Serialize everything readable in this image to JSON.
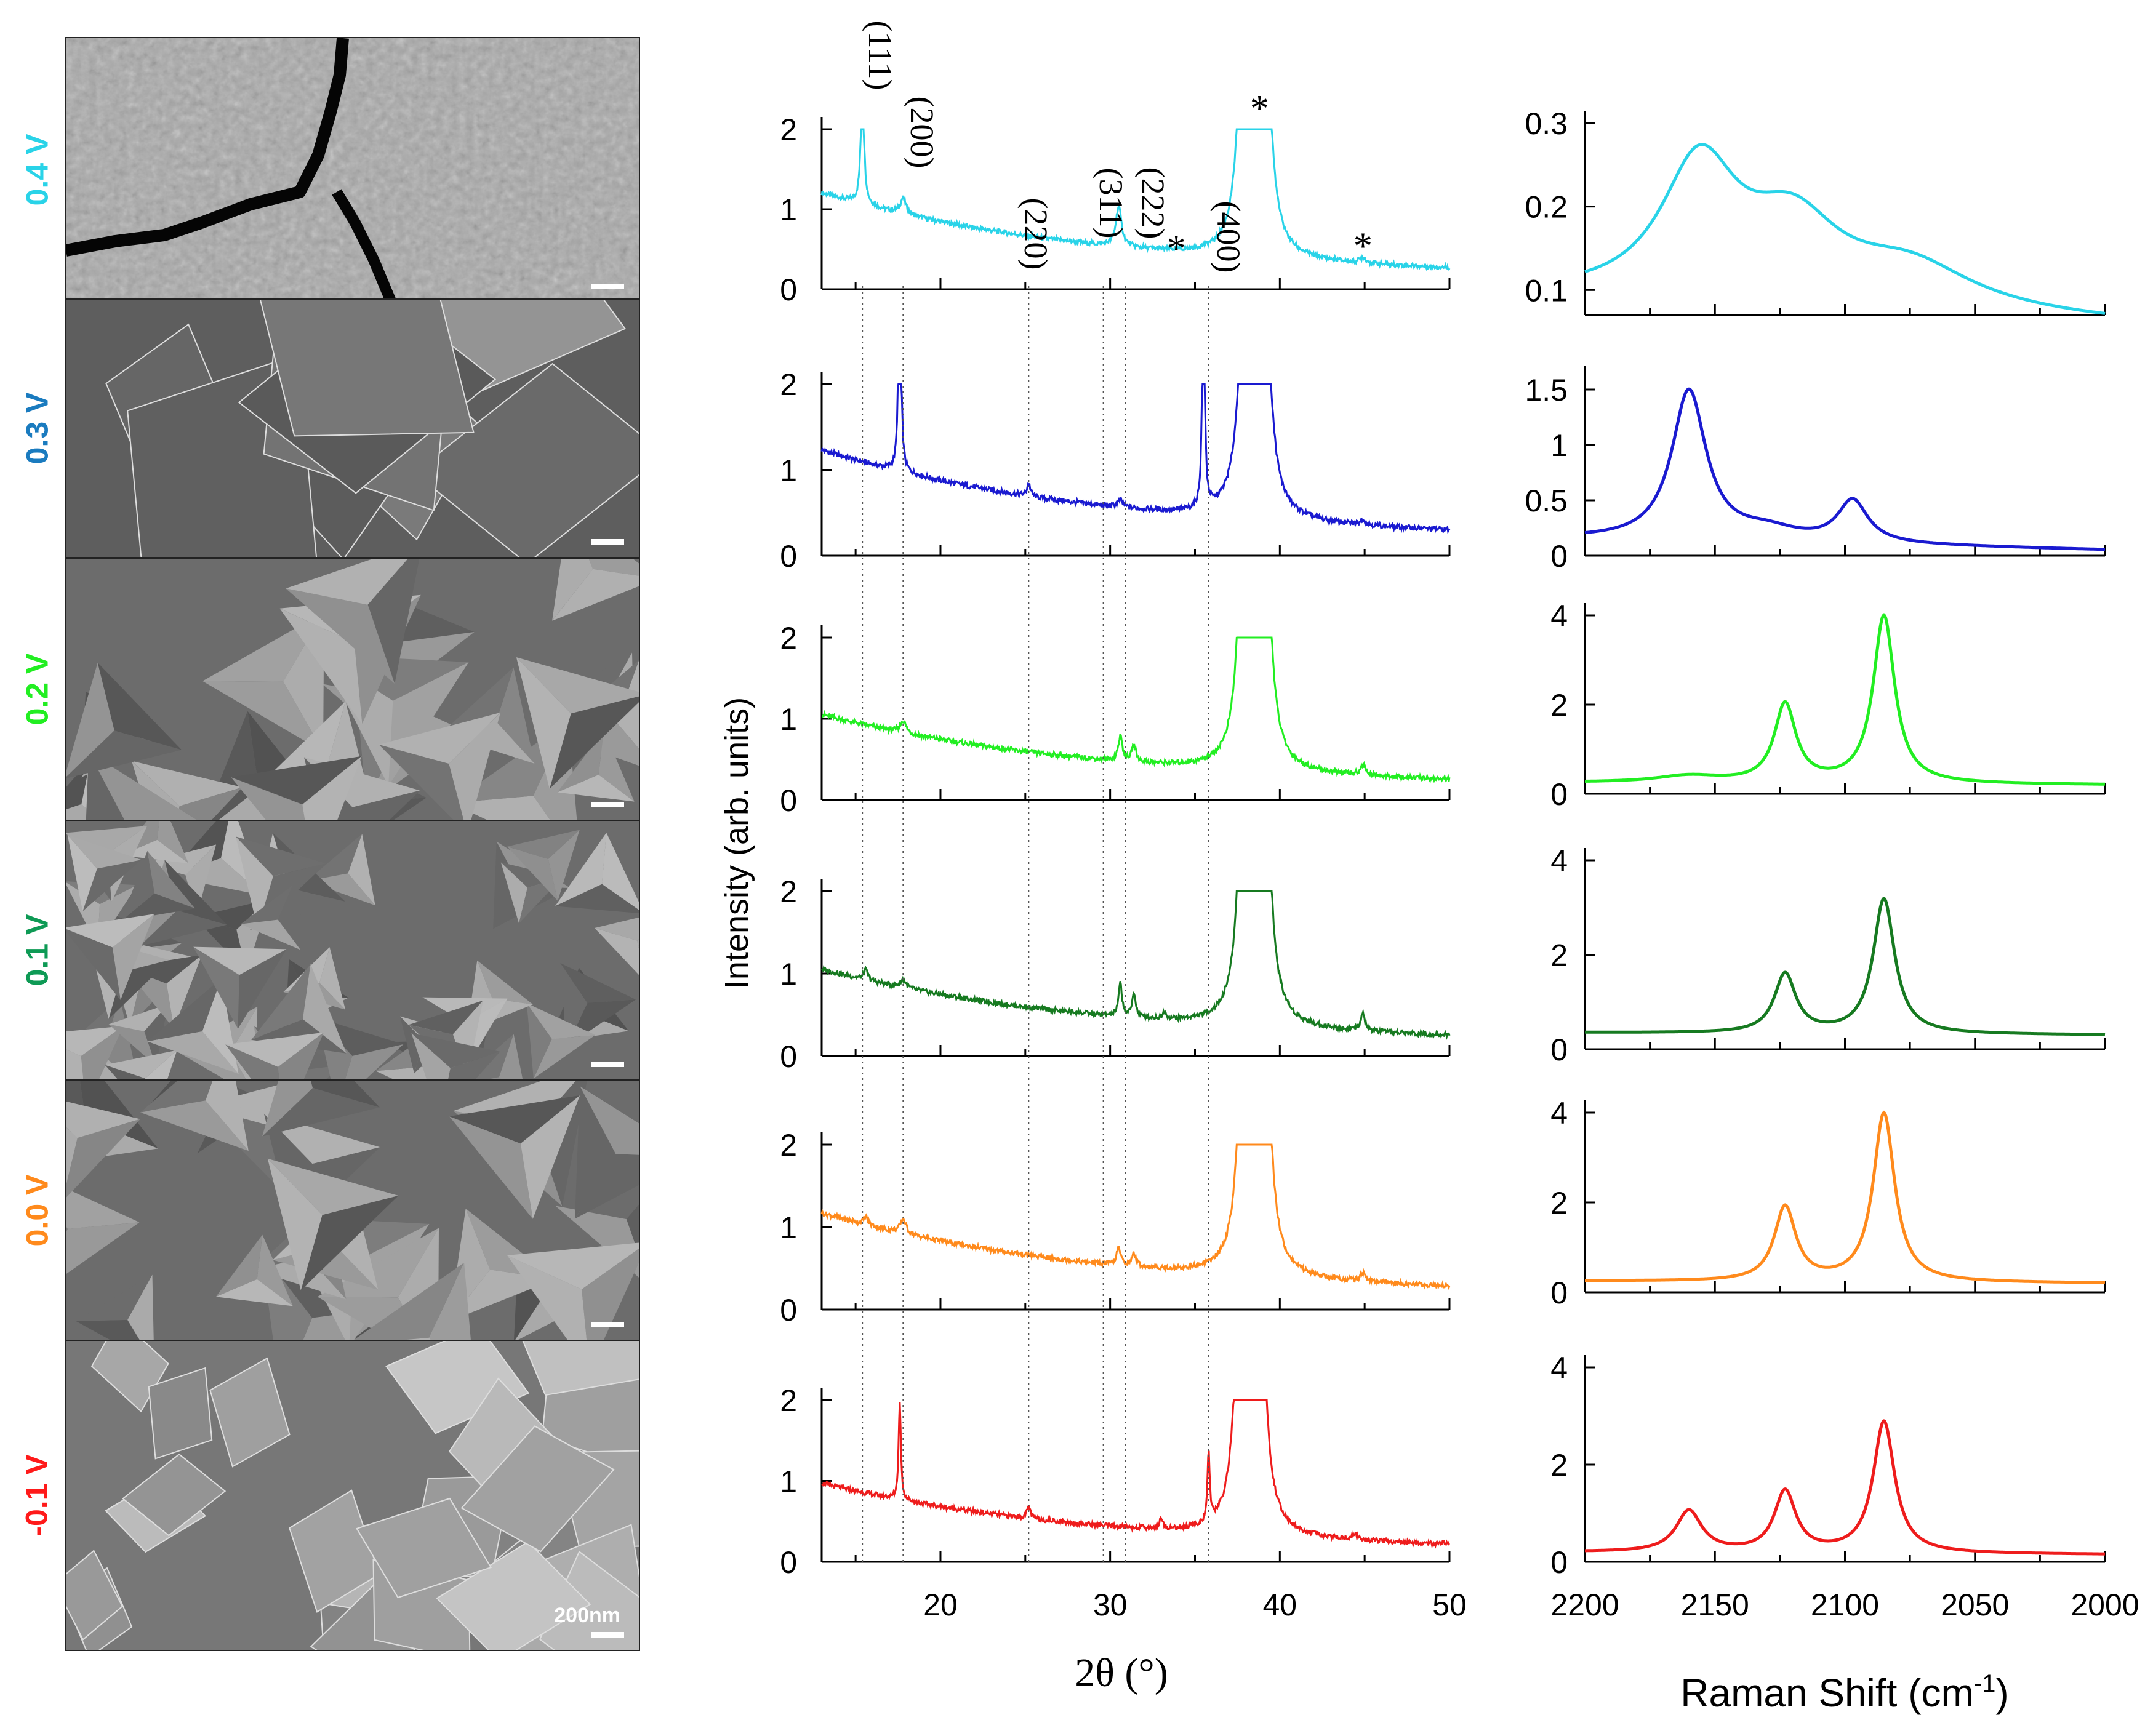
{
  "sem_panels": {
    "potentials": [
      {
        "label": "0.4 V",
        "color": "#29d3e8",
        "style": "crack"
      },
      {
        "label": "0.3 V",
        "color": "#1a7bbf",
        "style": "plates"
      },
      {
        "label": "0.2 V",
        "color": "#22ee22",
        "style": "pyramids-large"
      },
      {
        "label": "0.1 V",
        "color": "#0e9a55",
        "style": "pyramids-small"
      },
      {
        "label": "0.0 V",
        "color": "#ff8a1c",
        "style": "pyramids-mixed"
      },
      {
        "label": "-0.1 V",
        "color": "#ff1a1a",
        "style": "cubes"
      }
    ],
    "scale_bar_text": "200nm"
  },
  "chart_data": [
    {
      "type": "line",
      "name": "XRD",
      "xlabel": "2θ (°)",
      "ylabel": "Intensity (arb. units)",
      "xlim": [
        13,
        50
      ],
      "ylim": [
        0,
        2
      ],
      "xticks": [
        20,
        30,
        40,
        50
      ],
      "yticks": [
        0,
        1,
        2
      ],
      "reflections": [
        {
          "label": "(111)",
          "x": 15.4
        },
        {
          "label": "(200)",
          "x": 17.8
        },
        {
          "label": "(220)",
          "x": 25.2
        },
        {
          "label": "(311)",
          "x": 29.6
        },
        {
          "label": "(222)",
          "x": 30.9
        },
        {
          "label": "(400)",
          "x": 35.8
        }
      ],
      "substrate_markers": [
        {
          "label": "*",
          "x": 33.9,
          "y": 0.35
        },
        {
          "label": "*",
          "x": 38.8,
          "y": 2.1
        },
        {
          "label": "*",
          "x": 44.9,
          "y": 0.38
        }
      ],
      "series": [
        {
          "name": "0.4 V",
          "color": "#29d3e8",
          "background": [
            1.05,
            0.15
          ],
          "peaks": [
            [
              15.4,
              1.4,
              0.12
            ],
            [
              17.8,
              0.2,
              0.2
            ],
            [
              30.5,
              0.5,
              0.2
            ],
            [
              38.0,
              6.0,
              0.3
            ],
            [
              39.0,
              6.0,
              0.3
            ],
            [
              44.9,
              0.07,
              0.2
            ]
          ]
        },
        {
          "name": "0.3 V",
          "color": "#1a1ad0",
          "background": [
            1.05,
            0.18
          ],
          "peaks": [
            [
              17.6,
              3.0,
              0.08
            ],
            [
              25.2,
              0.15,
              0.12
            ],
            [
              30.6,
              0.08,
              0.2
            ],
            [
              35.5,
              3.0,
              0.08
            ],
            [
              38.1,
              6.0,
              0.3
            ],
            [
              38.9,
              6.0,
              0.3
            ],
            [
              39.6,
              0.08,
              0.2
            ],
            [
              44.9,
              0.06,
              0.2
            ]
          ]
        },
        {
          "name": "0.2 V",
          "color": "#22ee22",
          "background": [
            0.9,
            0.15
          ],
          "peaks": [
            [
              17.8,
              0.15,
              0.2
            ],
            [
              30.6,
              0.3,
              0.15
            ],
            [
              31.4,
              0.2,
              0.15
            ],
            [
              38.0,
              6.0,
              0.3
            ],
            [
              39.0,
              6.0,
              0.3
            ],
            [
              44.9,
              0.12,
              0.2
            ]
          ]
        },
        {
          "name": "0.1 V",
          "color": "#167a20",
          "background": [
            0.9,
            0.15
          ],
          "peaks": [
            [
              15.6,
              0.12,
              0.15
            ],
            [
              17.8,
              0.1,
              0.2
            ],
            [
              30.6,
              0.4,
              0.12
            ],
            [
              31.4,
              0.3,
              0.12
            ],
            [
              33.2,
              0.08,
              0.12
            ],
            [
              38.0,
              6.0,
              0.3
            ],
            [
              39.0,
              6.0,
              0.3
            ],
            [
              44.9,
              0.2,
              0.15
            ]
          ]
        },
        {
          "name": "0.0 V",
          "color": "#ff8a1c",
          "background": [
            1.0,
            0.17
          ],
          "peaks": [
            [
              15.6,
              0.1,
              0.15
            ],
            [
              17.8,
              0.18,
              0.2
            ],
            [
              30.5,
              0.2,
              0.15
            ],
            [
              31.4,
              0.15,
              0.15
            ],
            [
              38.0,
              6.0,
              0.3
            ],
            [
              39.0,
              6.0,
              0.3
            ],
            [
              44.9,
              0.1,
              0.2
            ]
          ]
        },
        {
          "name": "-0.1 V",
          "color": "#ee1c1c",
          "background": [
            0.85,
            0.12
          ],
          "peaks": [
            [
              17.6,
              1.2,
              0.08
            ],
            [
              25.2,
              0.15,
              0.12
            ],
            [
              33.0,
              0.12,
              0.12
            ],
            [
              35.8,
              0.85,
              0.08
            ],
            [
              37.8,
              6.0,
              0.3
            ],
            [
              38.7,
              6.0,
              0.3
            ],
            [
              44.4,
              0.06,
              0.2
            ]
          ]
        }
      ]
    },
    {
      "type": "line",
      "name": "Raman",
      "xlabel": "Raman Shift (cm-1)",
      "xlim": [
        2200,
        2000
      ],
      "xticks": [
        2200,
        2150,
        2100,
        2050,
        2000
      ],
      "series": [
        {
          "name": "0.4 V",
          "color": "#29d3e8",
          "ylim": [
            0.07,
            0.3
          ],
          "yticks": [
            0.1,
            0.2,
            0.3
          ],
          "baseline": [
            0.09,
            0.06
          ],
          "peaks": [
            [
              2156,
              0.16,
              18
            ],
            [
              2120,
              0.09,
              22
            ],
            [
              2075,
              0.05,
              30
            ]
          ]
        },
        {
          "name": "0.3 V",
          "color": "#1a1ad0",
          "ylim": [
            0,
            1.6
          ],
          "yticks": [
            0.0,
            0.5,
            1.0,
            1.5
          ],
          "baseline": [
            0.15,
            0.05
          ],
          "peaks": [
            [
              2160,
              1.35,
              8
            ],
            [
              2130,
              0.1,
              15
            ],
            [
              2097,
              0.38,
              7
            ]
          ]
        },
        {
          "name": "0.2 V",
          "color": "#22ee22",
          "ylim": [
            0,
            4
          ],
          "yticks": [
            0,
            2,
            4
          ],
          "baseline": [
            0.25,
            0.2
          ],
          "peaks": [
            [
              2160,
              0.15,
              15
            ],
            [
              2123,
              1.75,
              5
            ],
            [
              2085,
              3.75,
              5
            ]
          ]
        },
        {
          "name": "0.1 V",
          "color": "#167a20",
          "ylim": [
            0,
            4
          ],
          "yticks": [
            0,
            2,
            4
          ],
          "baseline": [
            0.35,
            0.3
          ],
          "peaks": [
            [
              2123,
              1.25,
              5
            ],
            [
              2085,
              2.85,
              5
            ]
          ]
        },
        {
          "name": "0.0 V",
          "color": "#ff8a1c",
          "ylim": [
            0,
            4
          ],
          "yticks": [
            0,
            2,
            4
          ],
          "baseline": [
            0.25,
            0.2
          ],
          "peaks": [
            [
              2123,
              1.65,
              5
            ],
            [
              2085,
              3.75,
              5
            ]
          ]
        },
        {
          "name": "-0.1 V",
          "color": "#ee1c1c",
          "ylim": [
            0,
            4
          ],
          "yticks": [
            0,
            2,
            4
          ],
          "baseline": [
            0.2,
            0.15
          ],
          "peaks": [
            [
              2160,
              0.85,
              6
            ],
            [
              2123,
              1.25,
              5
            ],
            [
              2085,
              2.7,
              5
            ]
          ]
        }
      ]
    }
  ]
}
